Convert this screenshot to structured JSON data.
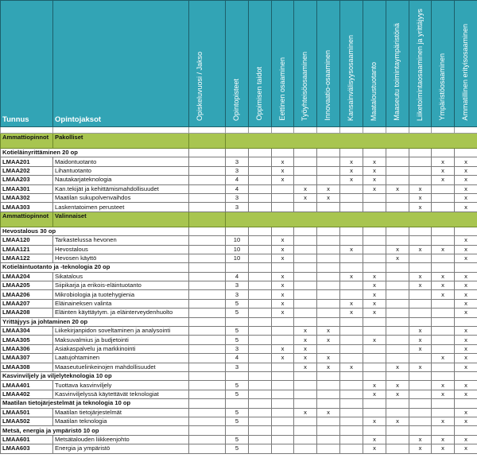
{
  "colors": {
    "header": "#32a4b5",
    "section": "#a8c550"
  },
  "columns": {
    "code": "Tunnus",
    "name": "Opintojaksot",
    "rotated": [
      "Opiskeluvuosi / Jakso",
      "Opintopisteet",
      "Oppimisen taidot",
      "Eettinen osaaminen",
      "Työyhteisöosaaminen",
      "Innovaatio-osaaminen",
      "Kansainvälisyysosaaminen",
      "Maataloustuotanto",
      "Maaseutu toimintaympäristönä",
      "Liiketoimintaosaaminen ja yrittäjyys",
      "Ympäristöosaaminen",
      "Ammatillinen erityisosaaminen"
    ]
  },
  "rows": [
    {
      "type": "section",
      "a": "Ammattiopinnot",
      "b": "Pakolliset"
    },
    {
      "type": "group",
      "label": "Kotieläinyrittäminen 20 op"
    },
    {
      "type": "course",
      "code": "LMAA201",
      "name": "Maidontuotanto",
      "op": "3",
      "marks": [
        "",
        "x",
        "",
        "",
        "x",
        "x",
        "",
        "",
        "x",
        "x"
      ]
    },
    {
      "type": "course",
      "code": "LMAA202",
      "name": "Lihantuotanto",
      "op": "3",
      "marks": [
        "",
        "x",
        "",
        "",
        "x",
        "x",
        "",
        "",
        "x",
        "x"
      ]
    },
    {
      "type": "course",
      "code": "LMAA203",
      "name": "Nautakarjateknologia",
      "op": "4",
      "marks": [
        "",
        "x",
        "",
        "",
        "x",
        "x",
        "",
        "",
        "x",
        "x"
      ]
    },
    {
      "type": "course",
      "code": "LMAA301",
      "name": "Kan.tekijät ja kehittämismahdollisuudet",
      "op": "4",
      "marks": [
        "",
        "",
        "x",
        "x",
        "",
        "x",
        "x",
        "x",
        "",
        "x"
      ]
    },
    {
      "type": "course",
      "code": "LMAA302",
      "name": "Maatilan sukupolvenvaihdos",
      "op": "3",
      "marks": [
        "",
        "",
        "x",
        "x",
        "",
        "",
        "",
        "x",
        "",
        "x"
      ]
    },
    {
      "type": "course",
      "code": "LMAA303",
      "name": "Laskentatoimen perusteet",
      "op": "3",
      "marks": [
        "",
        "",
        "",
        "",
        "",
        "",
        "",
        "x",
        "",
        "x"
      ]
    },
    {
      "type": "section",
      "a": "Ammattiopinnot",
      "b": "Valinnaiset"
    },
    {
      "type": "group",
      "label": "Hevostalous 30 op"
    },
    {
      "type": "course",
      "code": "LMAA120",
      "name": "Tarkastelussa hevonen",
      "op": "10",
      "marks": [
        "",
        "x",
        "",
        "",
        "",
        "",
        "",
        "",
        "",
        "x"
      ]
    },
    {
      "type": "course",
      "code": "LMAA121",
      "name": "Hevostalous",
      "op": "10",
      "marks": [
        "",
        "x",
        "",
        "",
        "x",
        "",
        "x",
        "x",
        "x",
        "x"
      ]
    },
    {
      "type": "course",
      "code": "LMAA122",
      "name": "Hevosen käyttö",
      "op": "10",
      "marks": [
        "",
        "x",
        "",
        "",
        "",
        "",
        "x",
        "",
        "",
        "x"
      ]
    },
    {
      "type": "group",
      "label": "Kotieläintuotanto ja -teknologia 20 op"
    },
    {
      "type": "course",
      "code": "LMAA204",
      "name": "Sikatalous",
      "op": "4",
      "marks": [
        "",
        "x",
        "",
        "",
        "x",
        "x",
        "",
        "x",
        "x",
        "x"
      ]
    },
    {
      "type": "course",
      "code": "LMAA205",
      "name": "Siipikarja ja erikois-eläintuotanto",
      "op": "3",
      "marks": [
        "",
        "x",
        "",
        "",
        "",
        "x",
        "",
        "x",
        "x",
        "x"
      ]
    },
    {
      "type": "course",
      "code": "LMAA206",
      "name": "Mikrobiologia ja tuotehygienia",
      "op": "3",
      "marks": [
        "",
        "x",
        "",
        "",
        "",
        "x",
        "",
        "",
        "x",
        "x"
      ]
    },
    {
      "type": "course",
      "code": "LMAA207",
      "name": "Eläinaineksen valinta",
      "op": "5",
      "marks": [
        "",
        "x",
        "",
        "",
        "x",
        "x",
        "",
        "",
        "",
        "x"
      ]
    },
    {
      "type": "course",
      "code": "LMAA208",
      "name": "Eläinten käyttäytym. ja eläinterveydenhuolto",
      "op": "5",
      "marks": [
        "",
        "x",
        "",
        "",
        "x",
        "x",
        "",
        "",
        "",
        "x"
      ]
    },
    {
      "type": "group",
      "label": "Yrittäjyys ja johtaminen 20 op"
    },
    {
      "type": "course",
      "code": "LMAA304",
      "name": "Liikekirjanpidon soveltaminen ja analysointi",
      "op": "5",
      "marks": [
        "",
        "",
        "x",
        "x",
        "",
        "",
        "",
        "x",
        "",
        "x"
      ]
    },
    {
      "type": "course",
      "code": "LMAA305",
      "name": "Maksuvalmius ja budjetointi",
      "op": "5",
      "marks": [
        "",
        "",
        "x",
        "x",
        "",
        "x",
        "",
        "x",
        "",
        "x"
      ]
    },
    {
      "type": "course",
      "code": "LMAA306",
      "name": "Asiakaspalvelu ja markkinointi",
      "op": "3",
      "marks": [
        "",
        "x",
        "x",
        "",
        "",
        "",
        "",
        "x",
        "",
        "x"
      ]
    },
    {
      "type": "course",
      "code": "LMAA307",
      "name": "Laatujohtaminen",
      "op": "4",
      "marks": [
        "",
        "x",
        "x",
        "x",
        "",
        "",
        "",
        "",
        "x",
        "x"
      ]
    },
    {
      "type": "course",
      "code": "LMAA308",
      "name": "Maaseutuelinkeinojen mahdollisuudet",
      "op": "3",
      "marks": [
        "",
        "",
        "x",
        "x",
        "x",
        "",
        "x",
        "x",
        "",
        "x"
      ]
    },
    {
      "type": "group",
      "label": "Kasvinviljely ja viljelyteknologia 10 op"
    },
    {
      "type": "course",
      "code": "LMAA401",
      "name": "Tuottava kasvinviljely",
      "op": "5",
      "marks": [
        "",
        "",
        "",
        "",
        "",
        "x",
        "x",
        "",
        "x",
        "x"
      ]
    },
    {
      "type": "course",
      "code": "LMAA402",
      "name": "Kasvinviljelyssä käytettävät teknologiat",
      "op": "5",
      "marks": [
        "",
        "",
        "",
        "",
        "",
        "x",
        "x",
        "",
        "x",
        "x"
      ]
    },
    {
      "type": "group",
      "label": "Maatilan tietojärjestelmät ja teknologia 10 op"
    },
    {
      "type": "course",
      "code": "LMAA501",
      "name": "Maatilan tietojärjestelmät",
      "op": "5",
      "marks": [
        "",
        "",
        "x",
        "x",
        "",
        "",
        "",
        "",
        "",
        "x"
      ]
    },
    {
      "type": "course",
      "code": "LMAA502",
      "name": "Maatilan teknologia",
      "op": "5",
      "marks": [
        "",
        "",
        "",
        "",
        "",
        "x",
        "x",
        "",
        "x",
        "x"
      ]
    },
    {
      "type": "group",
      "label": "Metsä, energia ja ympäristö 10 op"
    },
    {
      "type": "course",
      "code": "LMAA601",
      "name": "Metsätalouden liikkeenjohto",
      "op": "5",
      "marks": [
        "",
        "",
        "",
        "",
        "",
        "x",
        "",
        "x",
        "x",
        "x"
      ]
    },
    {
      "type": "course",
      "code": "LMAA603",
      "name": "Energia ja ympäristö",
      "op": "5",
      "marks": [
        "",
        "",
        "",
        "",
        "",
        "x",
        "",
        "x",
        "x",
        "x"
      ]
    }
  ]
}
